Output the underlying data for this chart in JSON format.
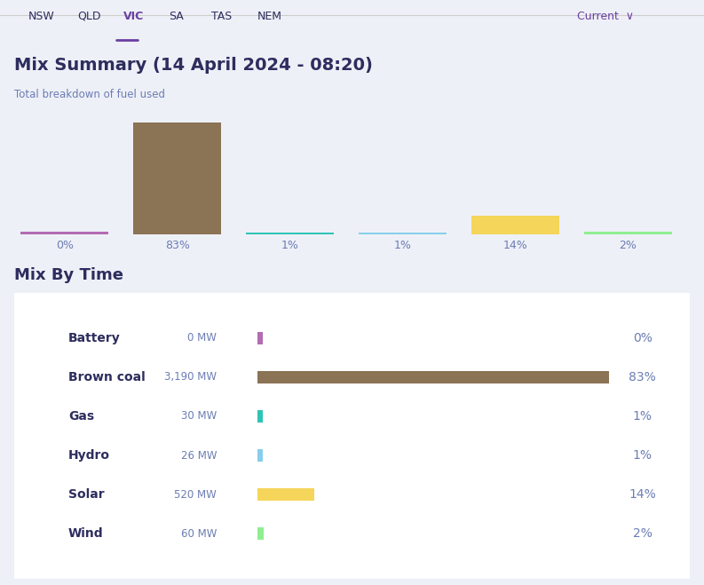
{
  "title": "Mix Summary (14 April 2024 - 08:20)",
  "subtitle": "Total breakdown of fuel used",
  "nav_items": [
    "NSW",
    "QLD",
    "VIC",
    "SA",
    "TAS",
    "NEM"
  ],
  "nav_active": "VIC",
  "bg_color": "#eef0f7",
  "panel_bg": "#ffffff",
  "bar_categories": [
    "Battery",
    "Brown coal",
    "Gas",
    "Hydro",
    "Solar",
    "Wind"
  ],
  "bar_values": [
    0,
    83,
    1,
    1,
    14,
    2
  ],
  "bar_colors": [
    "#b36bb3",
    "#8b7355",
    "#2ec4b6",
    "#87ceeb",
    "#f5d55a",
    "#90ee90"
  ],
  "bar_mw": [
    0,
    3190,
    30,
    26,
    520,
    60
  ],
  "bar_pct": [
    "0%",
    "83%",
    "1%",
    "1%",
    "14%",
    "2%"
  ],
  "section2_title": "Mix By Time",
  "hbar_max": 3190,
  "top_bar_colors": [
    "#b36bb3",
    "#8b7355",
    "#2ec4b6",
    "#87ceeb",
    "#f5d55a",
    "#90ee90"
  ],
  "accent_color": "#6b3fa0",
  "text_dark": "#2d2d5e",
  "text_muted": "#6b7db3"
}
